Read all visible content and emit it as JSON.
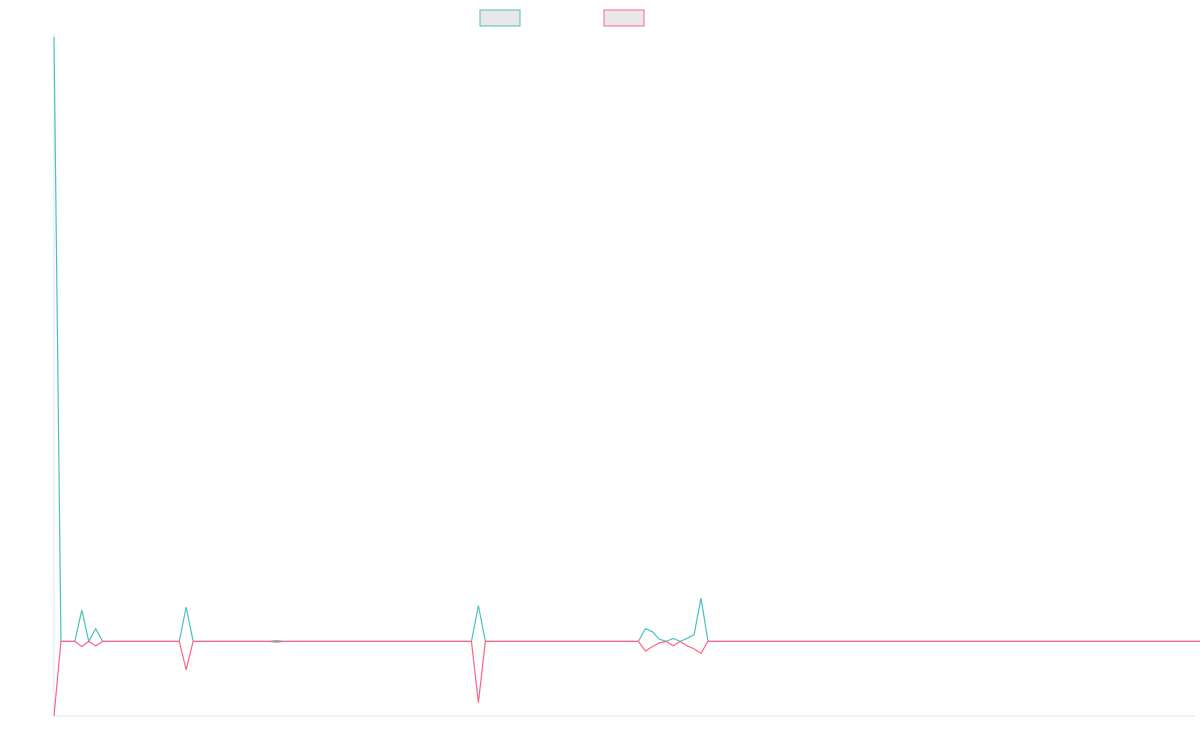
{
  "chart_data": {
    "type": "line",
    "title": "",
    "xlabel": "",
    "ylabel": "",
    "grid": false,
    "legend": "top-center",
    "x_count": 165,
    "ylim": [
      -100,
      810
    ],
    "series": [
      {
        "color": "#4bc0c0",
        "values": [
          810,
          0,
          0,
          0,
          42,
          0,
          17,
          0,
          0,
          0,
          0,
          0,
          0,
          0,
          0,
          0,
          0,
          0,
          0,
          46,
          0,
          0,
          0,
          0,
          0,
          0,
          0,
          0,
          0,
          0,
          0,
          0,
          1,
          0,
          0,
          0,
          0,
          0,
          0,
          0,
          0,
          0,
          0,
          0,
          0,
          0,
          0,
          0,
          0,
          0,
          0,
          0,
          0,
          0,
          0,
          0,
          0,
          0,
          0,
          0,
          0,
          48,
          0,
          0,
          0,
          0,
          0,
          0,
          0,
          0,
          0,
          0,
          0,
          0,
          0,
          0,
          0,
          0,
          0,
          0,
          0,
          0,
          0,
          0,
          0,
          17,
          13,
          3,
          0,
          4,
          0,
          4,
          9,
          58,
          0,
          0,
          0,
          0,
          0,
          0,
          0,
          0,
          0,
          0,
          0,
          0,
          0,
          0,
          0,
          0,
          0,
          0,
          0,
          0,
          0,
          0,
          0,
          0,
          0,
          0,
          0,
          0,
          0,
          0,
          0,
          0,
          0,
          0,
          0,
          0,
          0,
          0,
          0,
          0,
          0,
          0,
          0,
          0,
          0,
          0,
          0,
          0,
          0,
          0,
          0,
          0,
          0,
          0,
          0,
          0,
          0,
          0,
          0,
          0,
          0,
          0,
          0,
          0,
          0,
          0,
          0,
          0,
          0,
          0,
          0,
          0,
          0
        ]
      },
      {
        "color": "#ff6384",
        "values": [
          -100,
          0,
          0,
          0,
          -7,
          0,
          -6,
          0,
          0,
          0,
          0,
          0,
          0,
          0,
          0,
          0,
          0,
          0,
          0,
          -38,
          0,
          0,
          0,
          0,
          0,
          0,
          0,
          0,
          0,
          0,
          0,
          0,
          -1,
          0,
          0,
          0,
          0,
          0,
          0,
          0,
          0,
          0,
          0,
          0,
          0,
          0,
          0,
          0,
          0,
          0,
          0,
          0,
          0,
          0,
          0,
          0,
          0,
          0,
          0,
          0,
          0,
          -82,
          0,
          0,
          0,
          0,
          0,
          0,
          0,
          0,
          0,
          0,
          0,
          0,
          0,
          0,
          0,
          0,
          0,
          0,
          0,
          0,
          0,
          0,
          0,
          -13,
          -7,
          -2,
          0,
          -6,
          0,
          -6,
          -10,
          -16,
          0,
          0,
          0,
          0,
          0,
          0,
          0,
          0,
          0,
          0,
          0,
          0,
          0,
          0,
          0,
          0,
          0,
          0,
          0,
          0,
          0,
          0,
          0,
          0,
          0,
          0,
          0,
          0,
          0,
          0,
          0,
          0,
          0,
          0,
          0,
          0,
          0,
          0,
          0,
          0,
          0,
          0,
          0,
          0,
          0,
          0,
          0,
          0,
          0,
          0,
          0,
          0,
          0,
          0,
          0,
          0,
          0,
          0,
          0,
          0,
          0,
          0,
          0,
          0,
          0,
          0,
          0,
          0,
          0,
          0,
          0,
          0,
          0
        ]
      }
    ]
  }
}
